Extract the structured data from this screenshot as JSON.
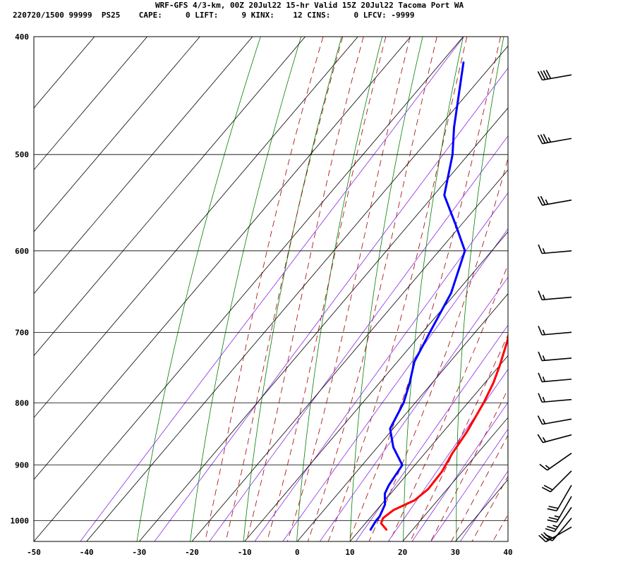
{
  "header": {
    "title": "WRF-GFS 4/3-km, 00Z 20Jul22 15-hr Valid 15Z 20Jul22 Tacoma Port WA",
    "params": "220720/1500 99999  PS25    CAPE:     0 LIFT:     9 KINX:    12 CINS:     0 LFCV: -9999"
  },
  "chart_data": {
    "type": "line",
    "subtype": "skew-t log-p sounding",
    "x_axis": {
      "unit": "°C",
      "range": [
        -50,
        40
      ],
      "ticks": [
        -50,
        -40,
        -30,
        -20,
        -10,
        0,
        10,
        20,
        30,
        40
      ]
    },
    "y_axis": {
      "unit": "hPa",
      "scale": "log",
      "range": [
        1040,
        400
      ],
      "ticks": [
        400,
        500,
        600,
        700,
        800,
        900,
        1000
      ]
    },
    "grid": true,
    "series": [
      {
        "color": "#ff0000",
        "points": [
          {
            "p": 1017,
            "t": 15.0
          },
          {
            "p": 1005,
            "t": 13.0
          },
          {
            "p": 995,
            "t": 12.5
          },
          {
            "p": 980,
            "t": 13.2
          },
          {
            "p": 962,
            "t": 15.6
          },
          {
            "p": 942,
            "t": 16.4
          },
          {
            "p": 912,
            "t": 16.2
          },
          {
            "p": 880,
            "t": 15.2
          },
          {
            "p": 845,
            "t": 14.5
          },
          {
            "p": 800,
            "t": 13.0
          },
          {
            "p": 770,
            "t": 11.6
          },
          {
            "p": 745,
            "t": 10.0
          },
          {
            "p": 700,
            "t": 6.6
          },
          {
            "p": 650,
            "t": 2.2
          },
          {
            "p": 600,
            "t": -1.9
          },
          {
            "p": 550,
            "t": -6.0
          },
          {
            "p": 505,
            "t": -10.2
          },
          {
            "p": 480,
            "t": -12.8
          },
          {
            "p": 420,
            "t": -20.5
          }
        ]
      },
      {
        "color": "#0000ff",
        "points": [
          {
            "p": 1017,
            "t": 12.0
          },
          {
            "p": 1000,
            "t": 11.6
          },
          {
            "p": 992,
            "t": 11.6
          },
          {
            "p": 970,
            "t": 10.7
          },
          {
            "p": 950,
            "t": 8.9
          },
          {
            "p": 935,
            "t": 8.3
          },
          {
            "p": 920,
            "t": 8.0
          },
          {
            "p": 900,
            "t": 7.6
          },
          {
            "p": 870,
            "t": 3.0
          },
          {
            "p": 840,
            "t": -0.6
          },
          {
            "p": 800,
            "t": -2.2
          },
          {
            "p": 770,
            "t": -4.3
          },
          {
            "p": 740,
            "t": -6.8
          },
          {
            "p": 700,
            "t": -8.6
          },
          {
            "p": 650,
            "t": -10.9
          },
          {
            "p": 600,
            "t": -15.1
          },
          {
            "p": 570,
            "t": -21.3
          },
          {
            "p": 540,
            "t": -28.0
          },
          {
            "p": 500,
            "t": -33.0
          },
          {
            "p": 475,
            "t": -37.1
          },
          {
            "p": 420,
            "t": -45.8
          }
        ]
      }
    ],
    "wind_barbs": [
      {
        "p": 1012,
        "dir": 240,
        "kt": 30
      },
      {
        "p": 995,
        "dir": 220,
        "kt": 20
      },
      {
        "p": 975,
        "dir": 215,
        "kt": 25
      },
      {
        "p": 955,
        "dir": 210,
        "kt": 25
      },
      {
        "p": 935,
        "dir": 210,
        "kt": 20
      },
      {
        "p": 910,
        "dir": 225,
        "kt": 20
      },
      {
        "p": 880,
        "dir": 235,
        "kt": 15
      },
      {
        "p": 850,
        "dir": 255,
        "kt": 15
      },
      {
        "p": 825,
        "dir": 260,
        "kt": 15
      },
      {
        "p": 795,
        "dir": 265,
        "kt": 15
      },
      {
        "p": 765,
        "dir": 265,
        "kt": 15
      },
      {
        "p": 735,
        "dir": 265,
        "kt": 15
      },
      {
        "p": 700,
        "dir": 265,
        "kt": 15
      },
      {
        "p": 655,
        "dir": 265,
        "kt": 15
      },
      {
        "p": 600,
        "dir": 265,
        "kt": 15
      },
      {
        "p": 545,
        "dir": 260,
        "kt": 25
      },
      {
        "p": 485,
        "dir": 260,
        "kt": 35
      },
      {
        "p": 430,
        "dir": 260,
        "kt": 40
      }
    ],
    "background_lines": {
      "isotherm_color": "#000000",
      "dry_adiabat_color": "#008000",
      "moist_adiabat_color": "#a00000",
      "mixing_ratio_color": "#8a2be2"
    }
  }
}
